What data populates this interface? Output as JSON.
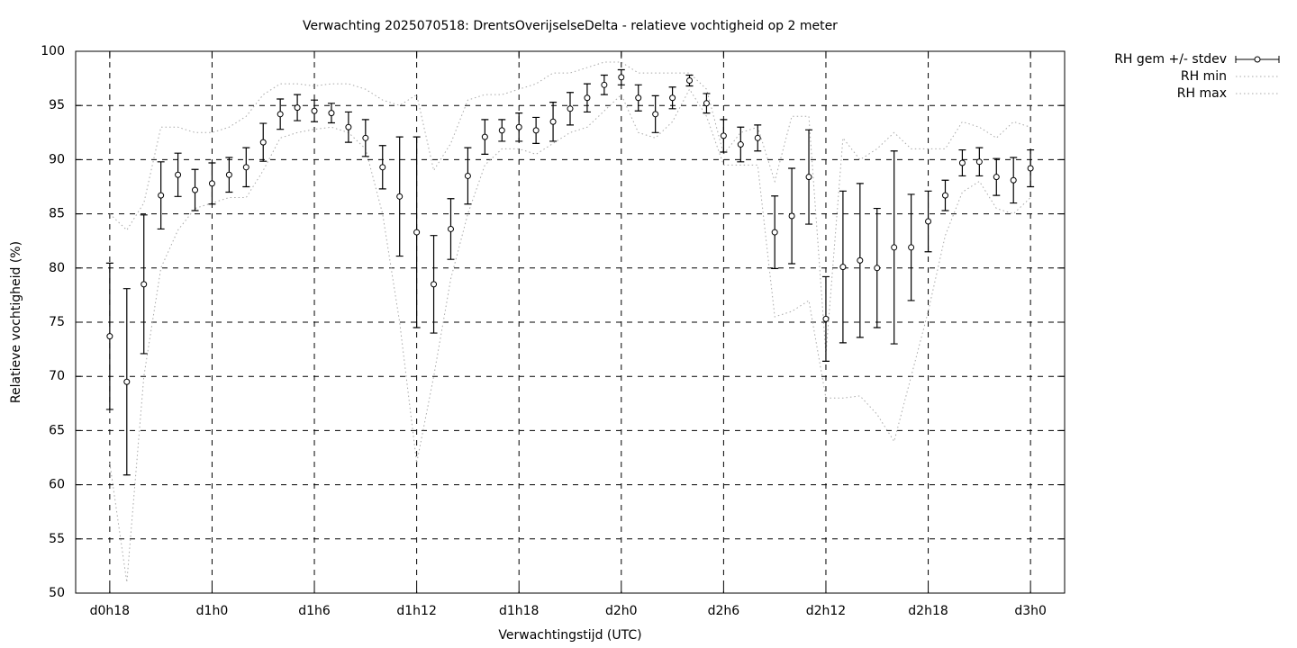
{
  "chart_data": {
    "type": "errorbar",
    "title": "Verwachting 2025070518: DrentsOverijselseDelta - relatieve vochtigheid op 2 meter",
    "x_label": "Verwachtingstijd (UTC)",
    "y_label": "Relatieve vochtigheid (%)",
    "x": [
      18,
      19,
      20,
      21,
      22,
      23,
      24,
      25,
      26,
      27,
      28,
      29,
      30,
      31,
      32,
      33,
      34,
      35,
      36,
      37,
      38,
      39,
      40,
      41,
      42,
      43,
      44,
      45,
      46,
      47,
      48,
      49,
      50,
      51,
      52,
      53,
      54,
      55,
      56,
      57,
      58,
      59,
      60,
      61,
      62,
      63,
      64,
      65,
      66,
      67,
      68,
      69,
      70,
      71,
      72
    ],
    "series": [
      {
        "name": "RH gem +/- stdev",
        "color": "#000000",
        "values": [
          73.7,
          69.5,
          78.5,
          86.7,
          88.6,
          87.2,
          87.8,
          88.6,
          89.3,
          91.6,
          94.2,
          94.8,
          94.5,
          94.3,
          93.0,
          92.0,
          89.3,
          86.6,
          83.3,
          78.5,
          83.6,
          88.5,
          92.1,
          92.7,
          93.0,
          92.7,
          93.5,
          94.7,
          95.7,
          96.9,
          97.6,
          95.7,
          94.2,
          95.7,
          97.3,
          95.2,
          92.2,
          91.4,
          92.0,
          83.3,
          84.8,
          88.4,
          75.3,
          80.1,
          80.7,
          80.0,
          81.9,
          81.9,
          84.3,
          86.7,
          89.7,
          89.8,
          88.4,
          88.1,
          89.2
        ],
        "errors": [
          6.75,
          8.6,
          6.4,
          3.1,
          2.0,
          1.9,
          1.9,
          1.6,
          1.8,
          1.75,
          1.4,
          1.2,
          1.0,
          0.9,
          1.4,
          1.7,
          2.0,
          5.5,
          8.8,
          4.5,
          2.8,
          2.6,
          1.6,
          1.0,
          1.3,
          1.2,
          1.8,
          1.5,
          1.3,
          0.9,
          0.7,
          1.2,
          1.7,
          1.0,
          0.5,
          0.9,
          1.5,
          1.6,
          1.2,
          3.35,
          4.4,
          4.35,
          3.9,
          7.0,
          7.1,
          5.5,
          8.9,
          4.9,
          2.8,
          1.4,
          1.2,
          1.3,
          1.7,
          2.1,
          1.7
        ]
      },
      {
        "name": "RH min",
        "color": "#a8a8a8",
        "values": [
          62,
          51,
          70,
          80,
          83.5,
          85.5,
          86,
          86.5,
          86.5,
          89,
          92,
          92.5,
          92.8,
          93,
          92.5,
          91,
          85,
          75,
          62,
          70,
          79,
          85,
          89.5,
          91,
          91,
          90.5,
          91.5,
          92.5,
          93,
          94.5,
          96,
          92.5,
          92,
          93.5,
          96.5,
          94,
          89.5,
          89.5,
          89.5,
          75.5,
          76,
          77,
          68,
          68,
          68.2,
          66.5,
          64,
          70,
          76,
          83,
          87,
          88,
          85.5,
          85,
          86.5
        ]
      },
      {
        "name": "RH max",
        "color": "#a8a8a8",
        "values": [
          85,
          83.5,
          86,
          93,
          93,
          92.5,
          92.5,
          93,
          94,
          96,
          97,
          97,
          96.8,
          97,
          97,
          96.5,
          95.5,
          95,
          96,
          89,
          91.5,
          95.5,
          96,
          96,
          96.5,
          97,
          98,
          98,
          98.5,
          99,
          99,
          98,
          98,
          98,
          98,
          96.5,
          90.5,
          92.5,
          93,
          88,
          94,
          94,
          72,
          92,
          90,
          91,
          92.5,
          91,
          91,
          91,
          93.5,
          93,
          92,
          93.5,
          93
        ]
      }
    ],
    "xlim": [
      16,
      74
    ],
    "xticks": [
      {
        "value": 18,
        "label": "d0h18"
      },
      {
        "value": 24,
        "label": "d1h0"
      },
      {
        "value": 30,
        "label": "d1h6"
      },
      {
        "value": 36,
        "label": "d1h12"
      },
      {
        "value": 42,
        "label": "d1h18"
      },
      {
        "value": 48,
        "label": "d2h0"
      },
      {
        "value": 54,
        "label": "d2h6"
      },
      {
        "value": 60,
        "label": "d2h12"
      },
      {
        "value": 66,
        "label": "d2h18"
      },
      {
        "value": 72,
        "label": "d3h0"
      }
    ],
    "ylim": [
      50,
      100
    ],
    "yticks": [
      50,
      55,
      60,
      65,
      70,
      75,
      80,
      85,
      90,
      95,
      100
    ],
    "grid": true,
    "legend": "outside-right"
  }
}
